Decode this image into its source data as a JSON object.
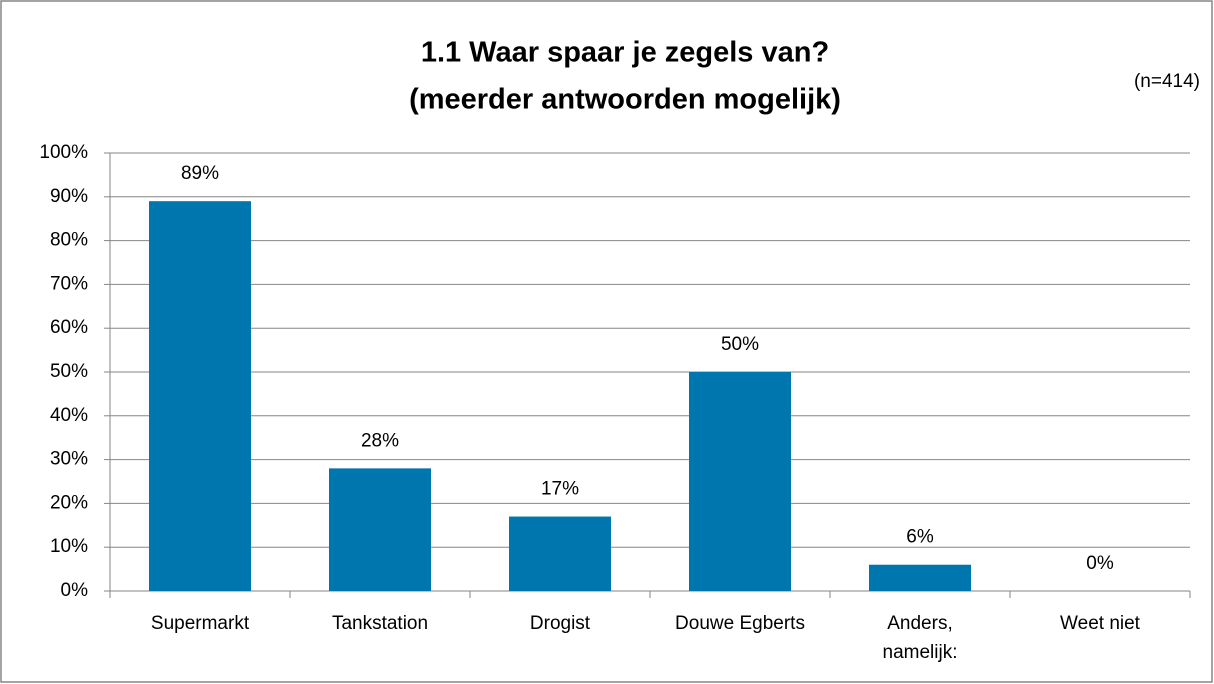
{
  "chart_data": {
    "type": "bar",
    "title_lines": [
      "1.1 Waar spaar je zegels van?",
      "(meerder antwoorden mogelijk)"
    ],
    "annotation": "(n=414)",
    "categories": [
      "Supermarkt",
      "Tankstation",
      "Drogist",
      "Douwe Egberts",
      "Anders,\nnamelijk:",
      "Weet niet"
    ],
    "values": [
      89,
      28,
      17,
      50,
      6,
      0
    ],
    "value_labels": [
      "89%",
      "28%",
      "17%",
      "50%",
      "6%",
      "0%"
    ],
    "color": "#0076ae",
    "ylim": [
      0,
      100
    ],
    "yticks": [
      {
        "value": 0,
        "label": "0%"
      },
      {
        "value": 10,
        "label": "10%"
      },
      {
        "value": 20,
        "label": "20%"
      },
      {
        "value": 30,
        "label": "30%"
      },
      {
        "value": 40,
        "label": "40%"
      },
      {
        "value": 50,
        "label": "50%"
      },
      {
        "value": 60,
        "label": "60%"
      },
      {
        "value": 70,
        "label": "70%"
      },
      {
        "value": 80,
        "label": "80%"
      },
      {
        "value": 90,
        "label": "90%"
      },
      {
        "value": 100,
        "label": "100%"
      }
    ],
    "grid": true
  }
}
